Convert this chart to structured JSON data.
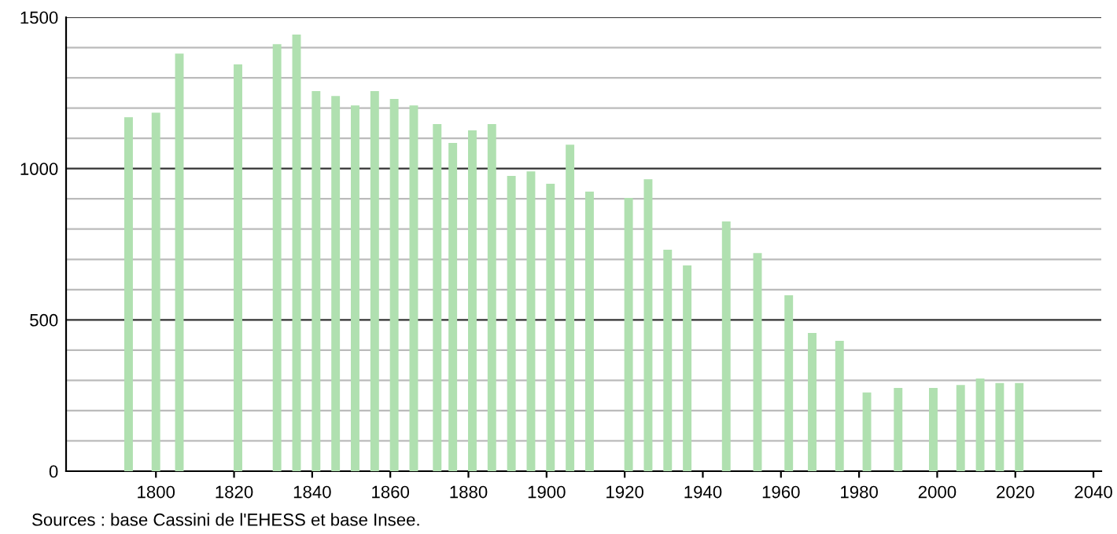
{
  "chart_data": {
    "type": "bar",
    "x": [
      1793,
      1800,
      1806,
      1821,
      1831,
      1836,
      1841,
      1846,
      1851,
      1856,
      1861,
      1866,
      1872,
      1876,
      1881,
      1886,
      1891,
      1896,
      1901,
      1906,
      1911,
      1921,
      1926,
      1931,
      1936,
      1946,
      1954,
      1962,
      1968,
      1975,
      1982,
      1990,
      1999,
      2006,
      2011,
      2016,
      2021
    ],
    "values": [
      1170,
      1185,
      1380,
      1344,
      1411,
      1443,
      1256,
      1240,
      1209,
      1256,
      1230,
      1209,
      1147,
      1085,
      1126,
      1147,
      976,
      991,
      950,
      1079,
      924,
      903,
      965,
      732,
      680,
      825,
      721,
      581,
      457,
      431,
      260,
      275,
      275,
      285,
      306,
      291,
      291
    ],
    "color": "#b0e0b0",
    "xlim": [
      1777,
      2042
    ],
    "xticks": [
      1800,
      1820,
      1840,
      1860,
      1880,
      1900,
      1920,
      1940,
      1960,
      1980,
      2000,
      2020,
      2040
    ],
    "ylim": [
      0,
      1500
    ],
    "yticks": [
      0,
      {
        "value": 100,
        "label": null
      },
      {
        "value": 200,
        "label": null
      },
      {
        "value": 300,
        "label": null
      },
      {
        "value": 400,
        "label": null
      },
      500,
      {
        "value": 600,
        "label": null
      },
      {
        "value": 700,
        "label": null
      },
      {
        "value": 800,
        "label": null
      },
      {
        "value": 900,
        "label": null
      },
      1000,
      {
        "value": 1100,
        "label": null
      },
      {
        "value": 1200,
        "label": null
      },
      {
        "value": 1300,
        "label": null
      },
      {
        "value": 1400,
        "label": null
      },
      1500
    ],
    "grid": "y",
    "annotations": [
      "Sources : base Cassini de l'EHESS et base Insee."
    ]
  }
}
